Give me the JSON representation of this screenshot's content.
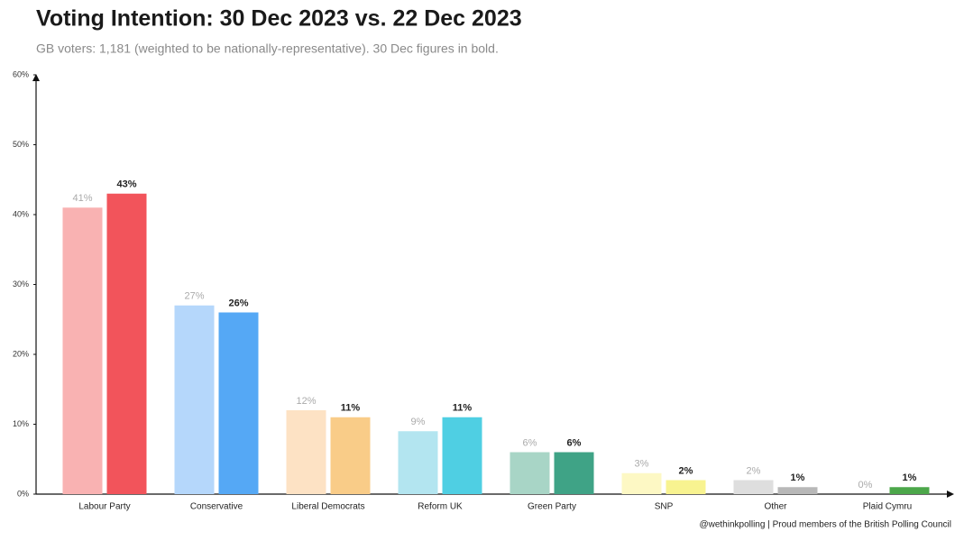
{
  "chart_data": {
    "type": "bar",
    "title": "Voting Intention: 30 Dec 2023 vs. 22 Dec 2023",
    "subtitle": "GB voters: 1,181 (weighted to be nationally-representative). 30 Dec figures in bold.",
    "footnote": "@wethinkpolling | Proud members of the British Polling Council",
    "categories": [
      "Labour Party",
      "Conservative",
      "Liberal Democrats",
      "Reform UK",
      "Green Party",
      "SNP",
      "Other",
      "Plaid Cymru"
    ],
    "series": [
      {
        "colors": [
          "#f9b2b2",
          "#b5d7fb",
          "#fde2c4",
          "#b3e5f0",
          "#a8d5c6",
          "#fdf8c4",
          "#dedede",
          "#c2e2b2"
        ],
        "values": [
          41,
          27,
          12,
          9,
          6,
          3,
          2,
          0
        ],
        "value_labels": [
          "41%",
          "27%",
          "12%",
          "9%",
          "6%",
          "3%",
          "2%",
          "0%"
        ]
      },
      {
        "colors": [
          "#f2545b",
          "#55a8f5",
          "#f9cc88",
          "#4fcfe3",
          "#3fa386",
          "#f8f390",
          "#b8b8b8",
          "#4ca74a"
        ],
        "values": [
          43,
          26,
          11,
          11,
          6,
          2,
          1,
          1
        ],
        "value_labels": [
          "43%",
          "26%",
          "11%",
          "11%",
          "6%",
          "2%",
          "1%",
          "1%"
        ]
      }
    ],
    "ylim": [
      0,
      60
    ],
    "yticks": [
      {
        "value": 0,
        "label": "0%"
      },
      {
        "value": 10,
        "label": "10%"
      },
      {
        "value": 20,
        "label": "20%"
      },
      {
        "value": 30,
        "label": "30%"
      },
      {
        "value": 40,
        "label": "40%"
      },
      {
        "value": 50,
        "label": "50%"
      },
      {
        "value": 60,
        "label": "60%"
      }
    ]
  }
}
